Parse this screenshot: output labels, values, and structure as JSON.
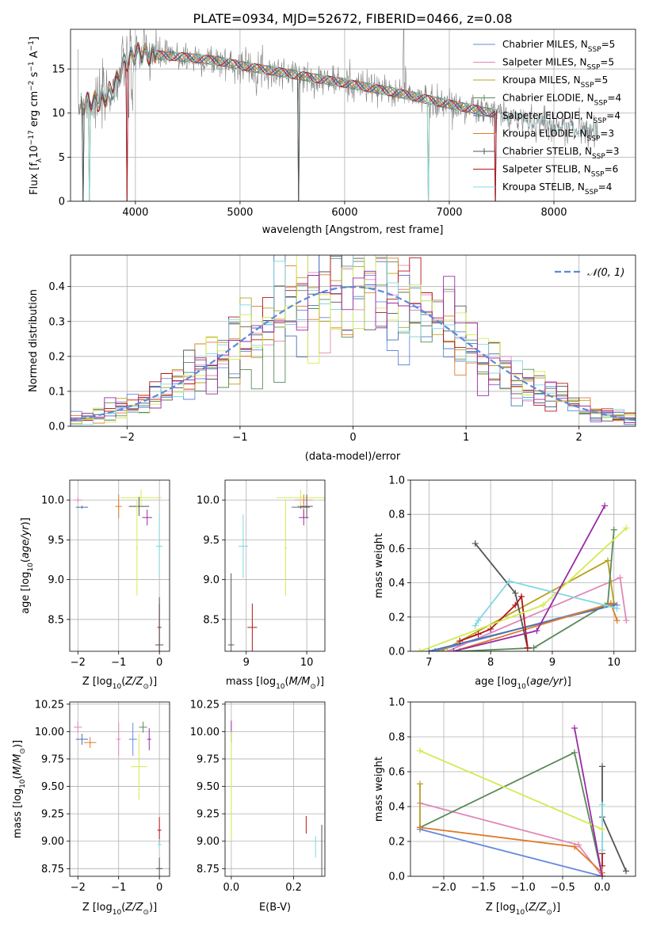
{
  "figure": {
    "title": "PLATE=0934, MJD=52672, FIBERID=0466, z=0.08"
  },
  "legend_spectrum": [
    {
      "label": "Chabrier MILES, N",
      "sub": "SSP",
      "tail": "=5",
      "color": "#6688dd"
    },
    {
      "label": "Salpeter MILES, N",
      "sub": "SSP",
      "tail": "=5",
      "color": "#e088b8"
    },
    {
      "label": "Kroupa MILES, N",
      "sub": "SSP",
      "tail": "=5",
      "color": "#b8a020"
    },
    {
      "label": "Chabrier ELODIE, N",
      "sub": "SSP",
      "tail": "=4",
      "color": "#5a8a5a"
    },
    {
      "label": "Salpeter ELODIE, N",
      "sub": "SSP",
      "tail": "=4",
      "color": "#4a70b0"
    },
    {
      "label": "Kroupa ELODIE, N",
      "sub": "SSP",
      "tail": "=3",
      "color": "#e07a28"
    },
    {
      "label": "Chabrier STELIB, N",
      "sub": "SSP",
      "tail": "=3",
      "color": "#555555"
    },
    {
      "label": "Salpeter STELIB, N",
      "sub": "SSP",
      "tail": "=6",
      "color": "#b01818"
    },
    {
      "label": "Kroupa STELIB, N",
      "sub": "SSP",
      "tail": "=4",
      "color": "#80d8e0"
    }
  ],
  "legend_hist": {
    "label": "𝒩(0, 1)",
    "color": "#5a8ad8"
  },
  "colors": {
    "data": "#808080",
    "lime": "#d4ea50",
    "purple": "#9a2aa8",
    "grid": "#b0b0b0"
  },
  "chart_data": [
    {
      "id": "spectrum",
      "type": "line",
      "title": "PLATE=0934, MJD=52672, FIBERID=0466, z=0.08",
      "xlabel": "wavelength [Angstrom, rest frame]",
      "ylabel": "Flux [f_λ 10^-17 erg cm^-2 s^-1 A^-1]",
      "xlim": [
        3380,
        8780
      ],
      "ylim": [
        0,
        19.5
      ],
      "xticks": [
        4000,
        5000,
        6000,
        7000,
        8000
      ],
      "yticks": [
        0,
        5,
        10,
        15
      ],
      "continuum": [
        [
          3450,
          11.0
        ],
        [
          3600,
          11.2
        ],
        [
          3700,
          11.6
        ],
        [
          3800,
          13.0
        ],
        [
          3900,
          15.8
        ],
        [
          4000,
          16.8
        ],
        [
          4100,
          16.7
        ],
        [
          4300,
          16.5
        ],
        [
          4500,
          16.3
        ],
        [
          4800,
          15.9
        ],
        [
          5000,
          15.4
        ],
        [
          5300,
          14.8
        ],
        [
          5600,
          14.2
        ],
        [
          6000,
          13.4
        ],
        [
          6500,
          12.3
        ],
        [
          7000,
          11.0
        ],
        [
          7500,
          9.8
        ],
        [
          8000,
          8.6
        ],
        [
          8400,
          7.9
        ]
      ]
    },
    {
      "id": "residuals",
      "type": "line",
      "xlabel": "(data-model)/error",
      "ylabel": "Normed distribution",
      "xlim": [
        -2.5,
        2.5
      ],
      "ylim": [
        0,
        0.49
      ],
      "xticks": [
        -2,
        -1,
        0,
        1,
        2
      ],
      "yticks": [
        0.0,
        0.1,
        0.2,
        0.3,
        0.4
      ],
      "gaussian": {
        "mean": 0,
        "sigma": 1
      }
    },
    {
      "id": "age-vs-Z",
      "type": "scatter",
      "xlabel": "Z [log10(Z/Z⊙)]",
      "ylabel": "age [log10(age/yr)]",
      "xlim": [
        -2.2,
        0.25
      ],
      "ylim": [
        8.1,
        10.25
      ],
      "xticks": [
        -2,
        -1,
        0
      ],
      "yticks": [
        8.5,
        9.0,
        9.5,
        10.0
      ],
      "points": [
        {
          "x": -2.0,
          "y": 10.0,
          "xe": 0.1,
          "ye": 0.03,
          "c": "#e088b8"
        },
        {
          "x": -1.9,
          "y": 9.91,
          "xe": 0.15,
          "ye": 0.02,
          "c": "#4a70b0"
        },
        {
          "x": -1.0,
          "y": 9.92,
          "xe": 0.08,
          "ye": 0.15,
          "c": "#e07a28"
        },
        {
          "x": -0.45,
          "y": 10.03,
          "xe": 0.5,
          "ye": 0.1,
          "c": "#d4ea50"
        },
        {
          "x": -0.5,
          "y": 9.92,
          "xe": 0.25,
          "ye": 0.12,
          "c": "#555555"
        },
        {
          "x": -0.3,
          "y": 9.78,
          "xe": 0.12,
          "ye": 0.1,
          "c": "#9a2aa8"
        },
        {
          "x": 0.0,
          "y": 9.42,
          "xe": 0.08,
          "ye": 0.4,
          "c": "#80d8e0"
        },
        {
          "x": 0.0,
          "y": 8.4,
          "xe": 0.05,
          "ye": 0.3,
          "c": "#b01818"
        },
        {
          "x": 0.0,
          "y": 8.18,
          "xe": 0.1,
          "ye": 0.6,
          "c": "#555555"
        },
        {
          "x": -0.55,
          "y": 9.4,
          "xe": 0.02,
          "ye": 0.6,
          "c": "#d4ea50"
        }
      ]
    },
    {
      "id": "age-vs-mass",
      "type": "scatter",
      "xlabel": "mass [log10(M/M⊙)]",
      "ylabel": "",
      "xlim": [
        8.65,
        10.3
      ],
      "ylim": [
        8.1,
        10.25
      ],
      "xticks": [
        9,
        10
      ],
      "yticks": [
        8.5,
        9.0,
        9.5,
        10.0
      ],
      "points": [
        {
          "x": 9.95,
          "y": 10.0,
          "xe": 0.15,
          "ye": 0.05,
          "c": "#e088b8"
        },
        {
          "x": 9.9,
          "y": 9.91,
          "xe": 0.15,
          "ye": 0.02,
          "c": "#4a70b0"
        },
        {
          "x": 9.95,
          "y": 9.92,
          "xe": 0.1,
          "ye": 0.15,
          "c": "#e07a28"
        },
        {
          "x": 9.9,
          "y": 10.03,
          "xe": 0.4,
          "ye": 0.1,
          "c": "#d4ea50"
        },
        {
          "x": 10.0,
          "y": 9.92,
          "xe": 0.1,
          "ye": 0.15,
          "c": "#555555"
        },
        {
          "x": 9.95,
          "y": 9.78,
          "xe": 0.08,
          "ye": 0.1,
          "c": "#9a2aa8"
        },
        {
          "x": 8.95,
          "y": 9.42,
          "xe": 0.08,
          "ye": 0.4,
          "c": "#80d8e0"
        },
        {
          "x": 9.1,
          "y": 8.4,
          "xe": 0.08,
          "ye": 0.3,
          "c": "#b01818"
        },
        {
          "x": 8.75,
          "y": 8.18,
          "xe": 0.05,
          "ye": 0.9,
          "c": "#555555"
        },
        {
          "x": 9.65,
          "y": 9.4,
          "xe": 0.02,
          "ye": 0.6,
          "c": "#d4ea50"
        }
      ]
    },
    {
      "id": "weight-vs-age",
      "type": "line",
      "xlabel": "age [log10(age/yr)]",
      "ylabel": "mass weight",
      "xlim": [
        6.7,
        10.35
      ],
      "ylim": [
        0,
        1.0
      ],
      "xticks": [
        7,
        8,
        9,
        10
      ],
      "yticks": [
        0.0,
        0.2,
        0.4,
        0.6,
        0.8,
        1.0
      ],
      "series": [
        {
          "c": "#6688dd",
          "pts": [
            [
              7.1,
              0.0
            ],
            [
              10.0,
              0.28
            ],
            [
              10.05,
              0.27
            ]
          ]
        },
        {
          "c": "#e088b8",
          "pts": [
            [
              7.3,
              0.0
            ],
            [
              10.1,
              0.43
            ],
            [
              10.2,
              0.18
            ]
          ]
        },
        {
          "c": "#b8a020",
          "pts": [
            [
              7.2,
              0.0
            ],
            [
              9.9,
              0.53
            ],
            [
              10.0,
              0.28
            ]
          ]
        },
        {
          "c": "#5a8a5a",
          "pts": [
            [
              7.5,
              0.0
            ],
            [
              8.7,
              0.02
            ],
            [
              9.9,
              0.28
            ],
            [
              10.0,
              0.71
            ]
          ]
        },
        {
          "c": "#4a70b0",
          "pts": [
            [
              7.0,
              0.0
            ],
            [
              10.0,
              0.27
            ]
          ]
        },
        {
          "c": "#e07a28",
          "pts": [
            [
              7.4,
              0.0
            ],
            [
              9.95,
              0.28
            ],
            [
              10.05,
              0.18
            ]
          ]
        },
        {
          "c": "#555555",
          "pts": [
            [
              7.75,
              0.63
            ],
            [
              8.4,
              0.34
            ],
            [
              8.6,
              0.02
            ]
          ]
        },
        {
          "c": "#b01818",
          "pts": [
            [
              7.5,
              0.06
            ],
            [
              7.8,
              0.1
            ],
            [
              8.0,
              0.13
            ],
            [
              8.4,
              0.27
            ],
            [
              8.5,
              0.32
            ],
            [
              8.6,
              0.02
            ]
          ]
        },
        {
          "c": "#80d8e0",
          "pts": [
            [
              7.75,
              0.15
            ],
            [
              7.8,
              0.18
            ],
            [
              8.3,
              0.41
            ],
            [
              9.85,
              0.27
            ],
            [
              10.05,
              0.25
            ]
          ]
        },
        {
          "c": "#d4ea50",
          "pts": [
            [
              6.85,
              0.0
            ],
            [
              8.85,
              0.27
            ],
            [
              10.2,
              0.72
            ]
          ]
        },
        {
          "c": "#9a2aa8",
          "pts": [
            [
              7.4,
              0.0
            ],
            [
              8.75,
              0.12
            ],
            [
              9.85,
              0.85
            ]
          ]
        }
      ]
    },
    {
      "id": "mass-vs-Z",
      "type": "scatter",
      "xlabel": "Z [log10(Z/Z⊙)]",
      "ylabel": "mass [log10(M/M⊙)]",
      "xlim": [
        -2.2,
        0.25
      ],
      "ylim": [
        8.68,
        10.27
      ],
      "xticks": [
        -2,
        -1,
        0
      ],
      "yticks": [
        8.75,
        9.0,
        9.25,
        9.5,
        9.75,
        10.0,
        10.25
      ],
      "points": [
        {
          "x": -2.0,
          "y": 10.04,
          "xe": 0.1,
          "ye": 0.05,
          "c": "#e088b8"
        },
        {
          "x": -1.9,
          "y": 9.93,
          "xe": 0.15,
          "ye": 0.05,
          "c": "#4a70b0"
        },
        {
          "x": -1.0,
          "y": 9.93,
          "xe": 0.05,
          "ye": 0.15,
          "c": "#e088b8"
        },
        {
          "x": -1.7,
          "y": 9.9,
          "xe": 0.15,
          "ye": 0.05,
          "c": "#e07a28"
        },
        {
          "x": -0.65,
          "y": 9.93,
          "xe": 0.1,
          "ye": 0.15,
          "c": "#6688dd"
        },
        {
          "x": -0.5,
          "y": 9.68,
          "xe": 0.2,
          "ye": 0.3,
          "c": "#d4ea50"
        },
        {
          "x": -0.4,
          "y": 10.04,
          "xe": 0.1,
          "ye": 0.05,
          "c": "#5a8a5a"
        },
        {
          "x": -0.25,
          "y": 9.93,
          "xe": 0.05,
          "ye": 0.1,
          "c": "#9a2aa8"
        },
        {
          "x": 0.0,
          "y": 9.1,
          "xe": 0.05,
          "ye": 0.12,
          "c": "#b01818"
        },
        {
          "x": 0.0,
          "y": 8.97,
          "xe": 0.05,
          "ye": 0.05,
          "c": "#80d8e0"
        },
        {
          "x": 0.0,
          "y": 8.75,
          "xe": 0.08,
          "ye": 0.1,
          "c": "#555555"
        }
      ]
    },
    {
      "id": "mass-vs-EBV",
      "type": "scatter",
      "xlabel": "E(B-V)",
      "ylabel": "",
      "xlim": [
        -0.02,
        0.3
      ],
      "ylim": [
        8.68,
        10.27
      ],
      "xticks": [
        0.0,
        0.2
      ],
      "yticks": [
        8.75,
        9.0,
        9.25,
        9.5,
        9.75,
        10.0,
        10.25
      ],
      "points": [
        {
          "x": 0.0,
          "y": 10.0,
          "xe": 0.0,
          "ye": 0.1,
          "c": "#9a2aa8"
        },
        {
          "x": 0.0,
          "y": 9.5,
          "xe": 0.0,
          "ye": 0.5,
          "c": "#d4ea50"
        },
        {
          "x": 0.24,
          "y": 9.15,
          "xe": 0.0,
          "ye": 0.08,
          "c": "#b01818"
        },
        {
          "x": 0.27,
          "y": 8.95,
          "xe": 0.0,
          "ye": 0.1,
          "c": "#80d8e0"
        },
        {
          "x": 0.29,
          "y": 8.9,
          "xe": 0.0,
          "ye": 0.25,
          "c": "#555555"
        }
      ]
    },
    {
      "id": "weight-vs-Z",
      "type": "line",
      "xlabel": "Z [log10(Z/Z⊙)]",
      "ylabel": "mass weight",
      "xlim": [
        -2.42,
        0.42
      ],
      "ylim": [
        0,
        1.0
      ],
      "xticks": [
        -2.0,
        -1.5,
        -1.0,
        -0.5,
        0.0
      ],
      "yticks": [
        0.0,
        0.2,
        0.4,
        0.6,
        0.8,
        1.0
      ],
      "series": [
        {
          "c": "#6688dd",
          "pts": [
            [
              -2.3,
              0.27
            ],
            [
              0.0,
              0.0
            ]
          ]
        },
        {
          "c": "#e088b8",
          "pts": [
            [
              -2.3,
              0.42
            ],
            [
              -0.3,
              0.18
            ],
            [
              0.0,
              0.0
            ]
          ]
        },
        {
          "c": "#b8a020",
          "pts": [
            [
              -2.3,
              0.53
            ],
            [
              -2.3,
              0.28
            ]
          ]
        },
        {
          "c": "#5a8a5a",
          "pts": [
            [
              -2.3,
              0.28
            ],
            [
              -0.35,
              0.71
            ],
            [
              0.0,
              0.0
            ]
          ]
        },
        {
          "c": "#e07a28",
          "pts": [
            [
              -2.3,
              0.28
            ],
            [
              -0.35,
              0.17
            ],
            [
              0.0,
              0.02
            ]
          ]
        },
        {
          "c": "#555555",
          "pts": [
            [
              0.0,
              0.63
            ],
            [
              0.0,
              0.34
            ],
            [
              0.3,
              0.03
            ]
          ]
        },
        {
          "c": "#b01818",
          "pts": [
            [
              0.0,
              0.13
            ],
            [
              0.0,
              0.06
            ]
          ]
        },
        {
          "c": "#80d8e0",
          "pts": [
            [
              0.0,
              0.41
            ],
            [
              0.0,
              0.15
            ]
          ]
        },
        {
          "c": "#d4ea50",
          "pts": [
            [
              -2.3,
              0.72
            ],
            [
              0.0,
              0.27
            ]
          ]
        },
        {
          "c": "#9a2aa8",
          "pts": [
            [
              -0.35,
              0.85
            ],
            [
              0.0,
              0.0
            ]
          ]
        }
      ]
    }
  ]
}
